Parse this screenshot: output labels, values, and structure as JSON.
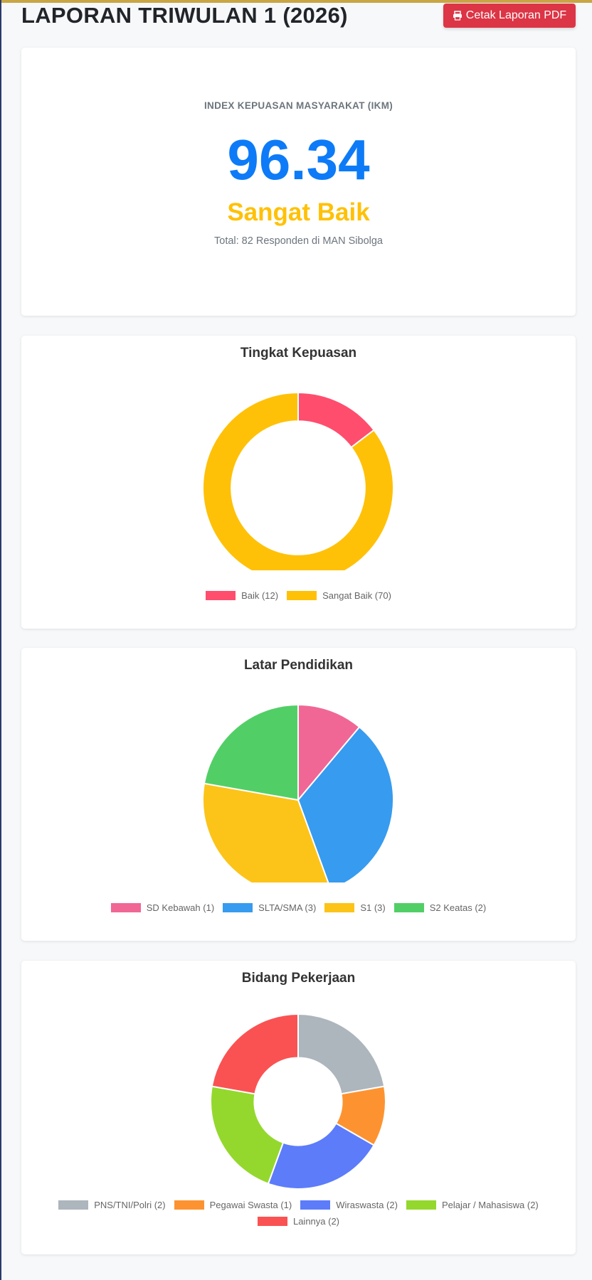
{
  "header": {
    "title": "LAPORAN TRIWULAN 1 (2026)",
    "pdf_button": "Cetak Laporan PDF"
  },
  "ikm": {
    "label": "INDEX KEPUASAN MASYARAKAT (IKM)",
    "value": "96.34",
    "category": "Sangat Baik",
    "total": "Total: 82 Responden di MAN Sibolga"
  },
  "chart_data": [
    {
      "type": "doughnut",
      "title": "Tingkat Kepuasan",
      "labels": [
        "Baik (12)",
        "Sangat Baik (70)"
      ],
      "values": [
        12,
        70
      ],
      "colors": [
        "#ff4d6d",
        "#ffc107"
      ],
      "cutout": 0.7
    },
    {
      "type": "pie",
      "title": "Latar Pendidikan",
      "labels": [
        "SD Kebawah (1)",
        "SLTA/SMA (3)",
        "S1 (3)",
        "S2 Keatas (2)"
      ],
      "values": [
        1,
        3,
        3,
        2
      ],
      "colors": [
        "#f06795",
        "#379bef",
        "#fcc419",
        "#51cf66"
      ],
      "cutout": 0
    },
    {
      "type": "doughnut",
      "title": "Bidang Pekerjaan",
      "labels": [
        "PNS/TNI/Polri (2)",
        "Pegawai Swasta (1)",
        "Wiraswasta (2)",
        "Pelajar / Mahasiswa (2)",
        "Lainnya (2)"
      ],
      "values": [
        2,
        1,
        2,
        2,
        2
      ],
      "colors": [
        "#adb5bd",
        "#fd9330",
        "#5c7cfa",
        "#94d82d",
        "#fa5252"
      ],
      "cutout": 0.5
    }
  ]
}
